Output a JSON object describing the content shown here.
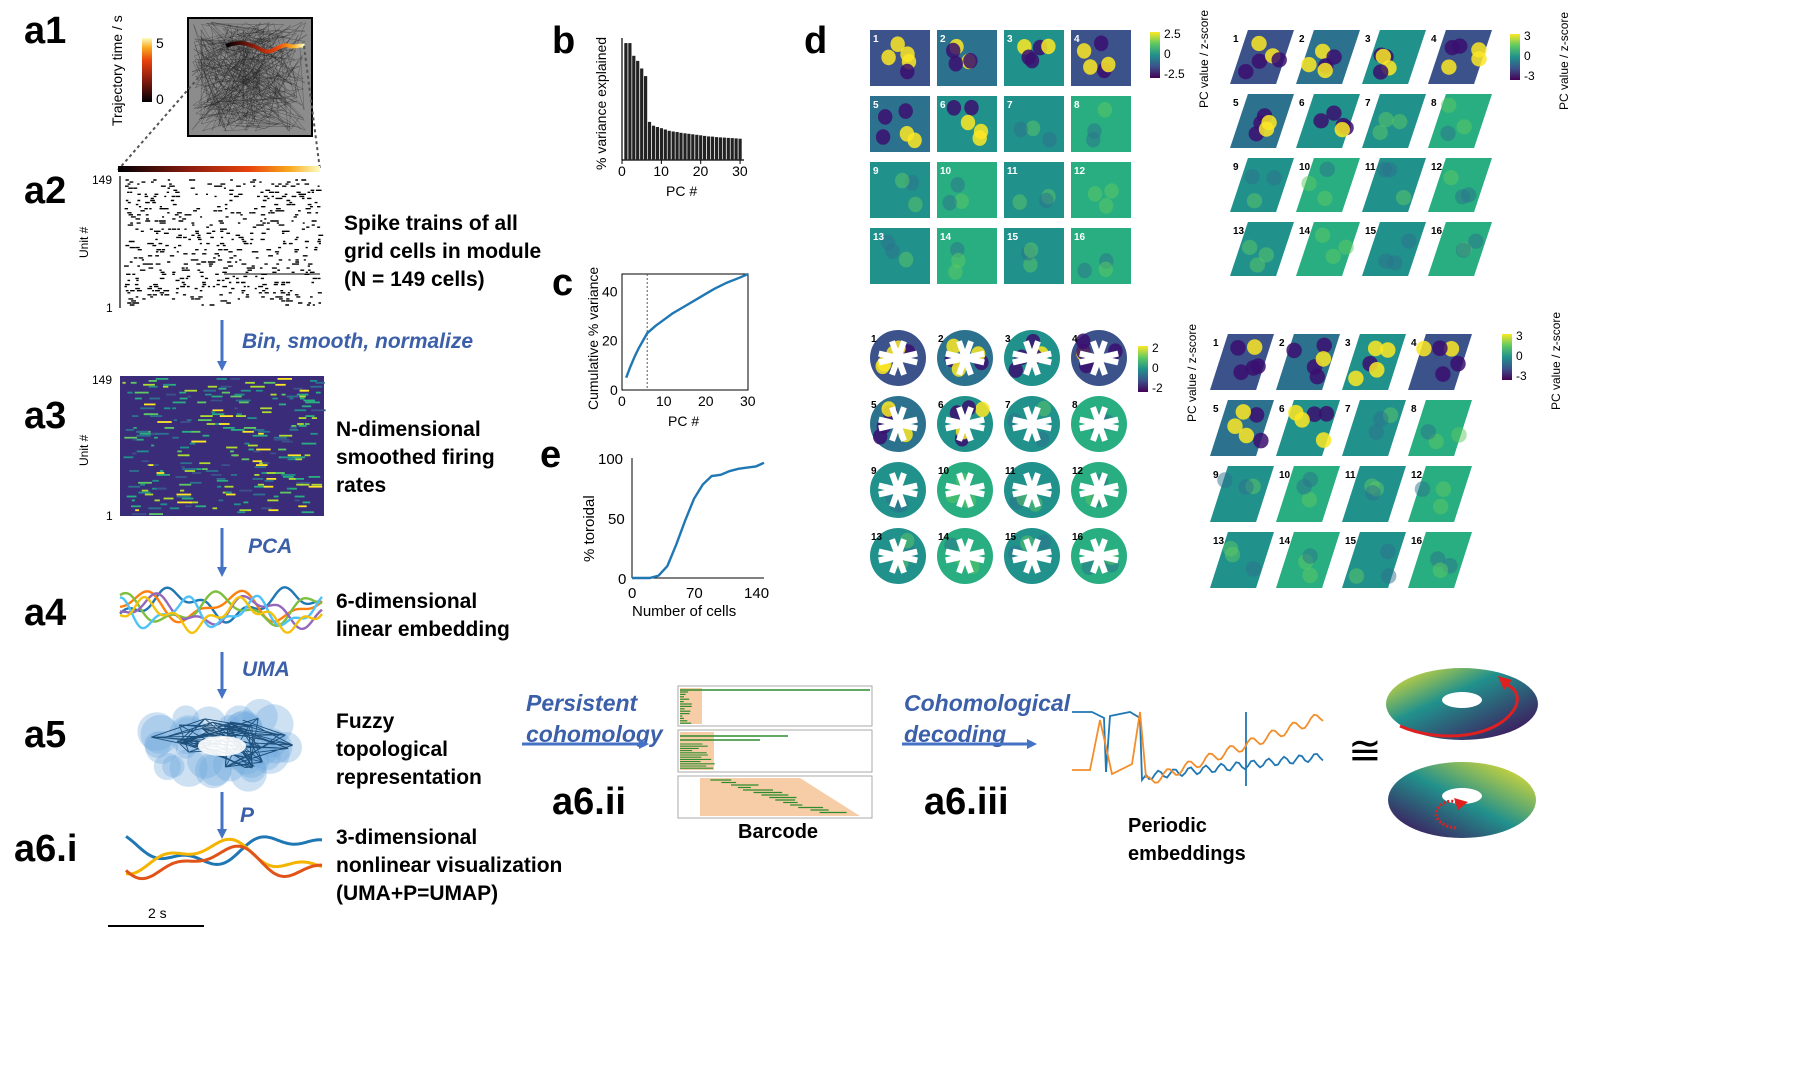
{
  "panel_labels": {
    "a1": "a1",
    "a2": "a2",
    "a3": "a3",
    "a4": "a4",
    "a5": "a5",
    "a6i": "a6.i",
    "a6ii": "a6.ii",
    "a6iii": "a6.iii",
    "b": "b",
    "c": "c",
    "d": "d",
    "e": "e"
  },
  "a1": {
    "colorbar_label": "Trajectory time / s",
    "colorbar_ticks": [
      "5",
      "0"
    ]
  },
  "a2": {
    "ylabel": "Unit #",
    "ytick_top": "149",
    "ytick_bottom": "1",
    "desc": [
      "Spike trains of all",
      "grid cells in module",
      "(N = 149 cells)"
    ]
  },
  "a3": {
    "ylabel": "Unit #",
    "ytick_top": "149",
    "ytick_bottom": "1",
    "desc": [
      "N-dimensional",
      "smoothed firing",
      "rates"
    ]
  },
  "a4": {
    "desc": [
      "6-dimensional",
      "linear embedding"
    ]
  },
  "a5": {
    "desc": [
      "Fuzzy",
      "topological",
      "representation"
    ]
  },
  "a6i": {
    "desc": [
      "3-dimensional",
      "nonlinear visualization",
      "(UMA+P=UMAP)"
    ],
    "scalebar": "2 s"
  },
  "steps": {
    "bin": "Bin, smooth, normalize",
    "pca": "PCA",
    "uma": "UMA",
    "p": "P",
    "persistent": [
      "Persistent",
      "cohomology"
    ],
    "cohom": [
      "Cohomological",
      "decoding"
    ]
  },
  "barcode_label": "Barcode",
  "periodic_label": [
    "Periodic",
    "embeddings"
  ],
  "congruent_symbol": "≅",
  "colors": {
    "arrow": "#4472c4",
    "bar": "#222222",
    "line": "#1f77b4",
    "barcode_green": "#2e8b2e",
    "barcode_peach": "#f6cda6",
    "orange": "#f28e2b"
  },
  "chart_data": [
    {
      "id": "b",
      "type": "bar",
      "xlabel": "PC #",
      "ylabel": "% variance explained",
      "xticks": [
        0,
        10,
        20,
        30
      ],
      "x": [
        1,
        2,
        3,
        4,
        5,
        6,
        7,
        8,
        9,
        10,
        11,
        12,
        13,
        14,
        15,
        16,
        17,
        18,
        19,
        20,
        21,
        22,
        23,
        24,
        25,
        26,
        27,
        28,
        29,
        30
      ],
      "values": [
        4.6,
        4.6,
        4.1,
        3.9,
        3.6,
        3.3,
        1.5,
        1.35,
        1.3,
        1.25,
        1.2,
        1.15,
        1.12,
        1.1,
        1.07,
        1.05,
        1.03,
        1.01,
        0.99,
        0.97,
        0.95,
        0.93,
        0.92,
        0.9,
        0.89,
        0.88,
        0.87,
        0.86,
        0.85,
        0.84
      ],
      "ylim": [
        0,
        4.8
      ]
    },
    {
      "id": "c",
      "type": "line",
      "xlabel": "PC #",
      "ylabel": "Cumulative % variance",
      "xticks": [
        0,
        10,
        20,
        30
      ],
      "yticks": [
        0,
        20,
        40
      ],
      "x": [
        1,
        2,
        3,
        4,
        5,
        6,
        8,
        10,
        12,
        15,
        18,
        20,
        22,
        25,
        28,
        30
      ],
      "values": [
        5,
        9.5,
        13.5,
        17,
        20,
        23,
        26,
        28.5,
        31,
        34,
        37,
        39,
        41,
        43.5,
        45.5,
        47
      ],
      "xlim": [
        0,
        30
      ],
      "ylim": [
        0,
        47
      ],
      "marker_x": 6
    },
    {
      "id": "e",
      "type": "line",
      "xlabel": "Number of cells",
      "ylabel": "% toroidal",
      "xticks": [
        0,
        70,
        140
      ],
      "yticks": [
        0,
        50,
        100
      ],
      "x": [
        0,
        10,
        20,
        30,
        40,
        50,
        60,
        70,
        80,
        90,
        100,
        110,
        120,
        130,
        140,
        149
      ],
      "values": [
        0,
        0,
        0,
        2,
        10,
        28,
        48,
        66,
        78,
        85,
        86,
        89,
        91,
        92,
        93,
        96
      ],
      "xlim": [
        0,
        149
      ],
      "ylim": [
        0,
        100
      ]
    }
  ],
  "d": {
    "numbers": [
      "1",
      "2",
      "3",
      "4",
      "5",
      "6",
      "7",
      "8",
      "9",
      "10",
      "11",
      "12",
      "13",
      "14",
      "15",
      "16"
    ],
    "cbar_label": "PC value / z-score",
    "cbar1_ticks": [
      "2.5",
      "0",
      "-2.5"
    ],
    "cbar2_ticks": [
      "3",
      "0",
      "-3"
    ],
    "cbar3_ticks": [
      "2",
      "0",
      "-2"
    ],
    "cbar4_ticks": [
      "3",
      "0",
      "-3"
    ]
  }
}
